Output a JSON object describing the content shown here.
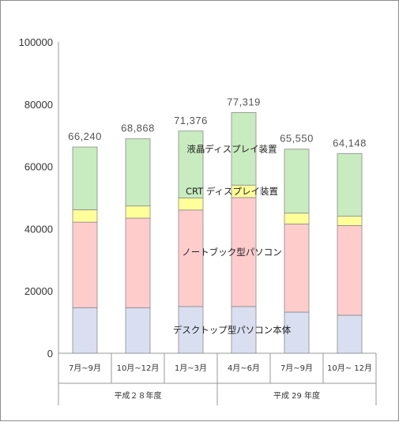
{
  "chart_data": {
    "type": "bar",
    "stacked": true,
    "ylim": [
      0,
      100000
    ],
    "yticks": [
      "0",
      "20000",
      "40000",
      "60000",
      "80000",
      "100000"
    ],
    "categories": [
      "7月~9月",
      "10月~12月",
      "1月~3月",
      "4月~6月",
      "7月~9月",
      "10月~ 12月"
    ],
    "highlight_category_index": 5,
    "highlight_color": "#ff0000",
    "groups": [
      {
        "label": "平成２８年度",
        "span": [
          0,
          2
        ]
      },
      {
        "label": "平成 29 年度",
        "span": [
          3,
          5
        ]
      }
    ],
    "totals": [
      "66,240",
      "68,868",
      "71,376",
      "77,319",
      "65,550",
      "64,148"
    ],
    "series": [
      {
        "name": "デスクトップ型パソコン本体",
        "color": "#d9dff0",
        "values": [
          14600,
          14600,
          15000,
          15000,
          13200,
          12200
        ]
      },
      {
        "name": "ノートブック型パソコン",
        "color": "#ffcccc",
        "values": [
          27500,
          28800,
          31000,
          35000,
          28300,
          28800
        ]
      },
      {
        "name": "CRT ディスプレイ装置",
        "color": "#ffff99",
        "values": [
          4000,
          3900,
          3900,
          4000,
          3500,
          3000
        ]
      },
      {
        "name": "液晶ディスプレイ装置",
        "color": "#c8ecc0",
        "values": [
          20140,
          21568,
          21476,
          23319,
          20550,
          20148
        ]
      }
    ],
    "series_label_columns": [
      3,
      3,
      3,
      3
    ],
    "grid": false,
    "legend": "inline"
  }
}
